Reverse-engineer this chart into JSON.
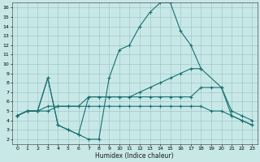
{
  "xlabel": "Humidex (Indice chaleur)",
  "background_color": "#c8e8e8",
  "grid_color": "#a0c8c8",
  "line_color": "#1a7070",
  "xlim": [
    -0.5,
    23.5
  ],
  "ylim": [
    1.5,
    16.5
  ],
  "xticks": [
    0,
    1,
    2,
    3,
    4,
    5,
    6,
    7,
    8,
    9,
    10,
    11,
    12,
    13,
    14,
    15,
    16,
    17,
    18,
    19,
    20,
    21,
    22,
    23
  ],
  "yticks": [
    2,
    3,
    4,
    5,
    6,
    7,
    8,
    9,
    10,
    11,
    12,
    13,
    14,
    15,
    16
  ],
  "lines": [
    {
      "x": [
        0,
        1,
        2,
        3,
        4,
        5,
        6,
        7,
        8,
        9,
        10,
        11,
        12,
        13,
        14,
        15,
        16,
        17,
        18,
        19,
        20,
        21,
        22,
        23
      ],
      "y": [
        4.5,
        5.0,
        5.0,
        8.5,
        3.5,
        3.0,
        2.5,
        2.0,
        2.0,
        8.5,
        11.5,
        12.0,
        14.0,
        15.5,
        16.5,
        16.5,
        13.5,
        12.0,
        9.5,
        null,
        null,
        null,
        null,
        null
      ]
    },
    {
      "x": [
        0,
        1,
        2,
        3,
        4,
        5,
        6,
        7,
        8,
        9,
        10,
        11,
        12,
        13,
        14,
        15,
        16,
        17,
        18,
        19,
        20,
        21,
        22,
        23
      ],
      "y": [
        4.5,
        5.0,
        5.0,
        8.5,
        3.5,
        3.0,
        2.5,
        6.5,
        6.5,
        6.5,
        6.5,
        6.5,
        7.0,
        7.5,
        8.0,
        8.5,
        9.0,
        9.5,
        9.5,
        null,
        7.5,
        4.5,
        4.0,
        3.5
      ]
    },
    {
      "x": [
        0,
        1,
        2,
        3,
        4,
        5,
        6,
        7,
        8,
        9,
        10,
        11,
        12,
        13,
        14,
        15,
        16,
        17,
        18,
        19,
        20,
        21,
        22,
        23
      ],
      "y": [
        4.5,
        5.0,
        5.0,
        5.5,
        5.5,
        5.5,
        5.5,
        6.5,
        6.5,
        6.5,
        6.5,
        6.5,
        6.5,
        6.5,
        6.5,
        6.5,
        6.5,
        6.5,
        7.5,
        7.5,
        7.5,
        5.0,
        4.5,
        4.0
      ]
    },
    {
      "x": [
        0,
        1,
        2,
        3,
        4,
        5,
        6,
        7,
        8,
        9,
        10,
        11,
        12,
        13,
        14,
        15,
        16,
        17,
        18,
        19,
        20,
        21,
        22,
        23
      ],
      "y": [
        4.5,
        5.0,
        5.0,
        5.0,
        5.5,
        5.5,
        5.5,
        5.5,
        5.5,
        5.5,
        5.5,
        5.5,
        5.5,
        5.5,
        5.5,
        5.5,
        5.5,
        5.5,
        5.5,
        5.0,
        5.0,
        4.5,
        4.0,
        3.5
      ]
    }
  ]
}
